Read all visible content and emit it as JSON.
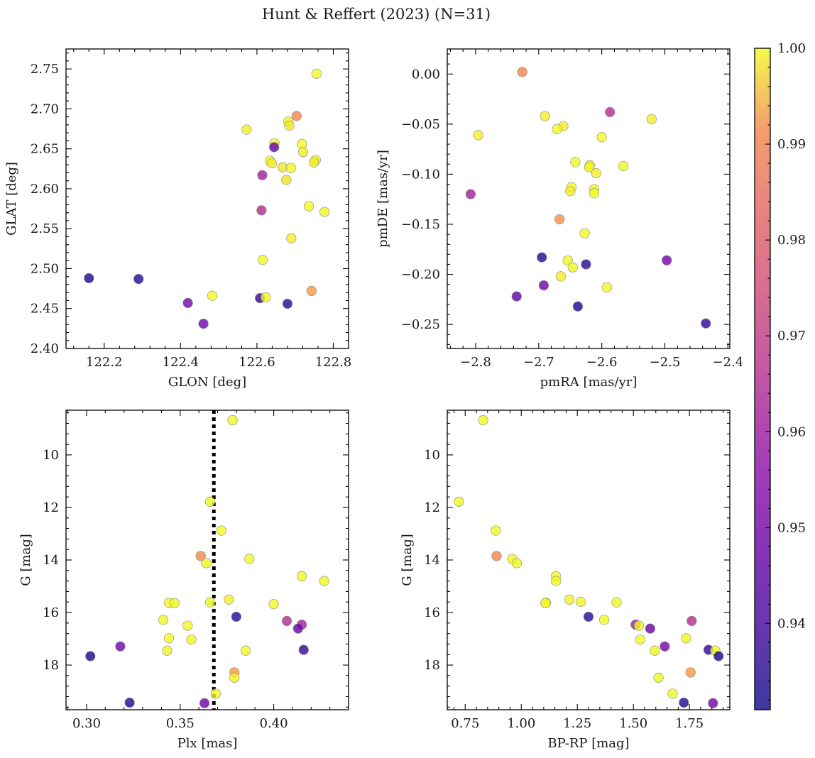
{
  "chart_data": {
    "type": "scatter",
    "title": "Hunt & Reffert (2023) (N=31)",
    "colorbar": {
      "range": [
        0.931,
        1.0
      ],
      "ticks": [
        0.94,
        0.95,
        0.96,
        0.97,
        0.98,
        0.99,
        1.0
      ],
      "tick_labels": [
        "0.94",
        "0.95",
        "0.96",
        "0.97",
        "0.98",
        "0.99",
        "1.00"
      ],
      "colormap": "plasma"
    },
    "panels": [
      {
        "id": "glon-glat",
        "xlabel": "GLON [deg]",
        "ylabel": "GLAT [deg]",
        "xlim": [
          122.1,
          122.84
        ],
        "ylim": [
          2.4,
          2.775
        ],
        "inverted_y": false,
        "xticks": [
          122.2,
          122.4,
          122.6,
          122.8
        ],
        "xtick_labels": [
          "122.2",
          "122.4",
          "122.6",
          "122.8"
        ],
        "yticks": [
          2.4,
          2.45,
          2.5,
          2.55,
          2.6,
          2.65,
          2.7,
          2.75
        ],
        "ytick_labels": [
          "2.40",
          "2.45",
          "2.50",
          "2.55",
          "2.60",
          "2.65",
          "2.70",
          "2.75"
        ],
        "points": [
          [
            122.756,
            2.744,
            1.0
          ],
          [
            122.704,
            2.691,
            0.985
          ],
          [
            122.682,
            2.684,
            1.0
          ],
          [
            122.685,
            2.679,
            0.998
          ],
          [
            122.573,
            2.674,
            0.999
          ],
          [
            122.646,
            2.657,
            0.999
          ],
          [
            122.718,
            2.656,
            1.0
          ],
          [
            122.645,
            2.652,
            0.945
          ],
          [
            122.721,
            2.646,
            0.999
          ],
          [
            122.754,
            2.636,
            1.0
          ],
          [
            122.634,
            2.635,
            1.0
          ],
          [
            122.749,
            2.633,
            0.999
          ],
          [
            122.639,
            2.632,
            0.999
          ],
          [
            122.667,
            2.627,
            0.998
          ],
          [
            122.689,
            2.626,
            1.0
          ],
          [
            122.614,
            2.617,
            0.958
          ],
          [
            122.677,
            2.611,
            0.998
          ],
          [
            122.736,
            2.578,
            1.0
          ],
          [
            122.777,
            2.571,
            1.0
          ],
          [
            122.612,
            2.573,
            0.962
          ],
          [
            122.69,
            2.538,
            0.999
          ],
          [
            122.615,
            2.511,
            1.0
          ],
          [
            122.16,
            2.488,
            0.932
          ],
          [
            122.29,
            2.487,
            0.933
          ],
          [
            122.483,
            2.466,
            1.0
          ],
          [
            122.608,
            2.463,
            0.936
          ],
          [
            122.743,
            2.472,
            0.989
          ],
          [
            122.419,
            2.457,
            0.948
          ],
          [
            122.68,
            2.456,
            0.935
          ],
          [
            122.46,
            2.431,
            0.947
          ],
          [
            122.623,
            2.464,
            1.0
          ]
        ]
      },
      {
        "id": "pmra-pmde",
        "xlabel": "pmRA [mas/yr]",
        "ylabel": "pmDE [mas/yr]",
        "xlim": [
          -2.845,
          -2.397
        ],
        "ylim": [
          -0.274,
          0.025
        ],
        "inverted_y": false,
        "xticks": [
          -2.8,
          -2.7,
          -2.6,
          -2.5,
          -2.4
        ],
        "xtick_labels": [
          "−2.8",
          "−2.7",
          "−2.6",
          "−2.5",
          "−2.4"
        ],
        "yticks": [
          -0.25,
          -0.2,
          -0.15,
          -0.1,
          -0.05,
          0.0
        ],
        "ytick_labels": [
          "−0.25",
          "−0.20",
          "−0.15",
          "−0.10",
          "−0.05",
          "0.00"
        ],
        "points": [
          [
            -2.726,
            0.002,
            0.985
          ],
          [
            -2.587,
            -0.038,
            0.962
          ],
          [
            -2.69,
            -0.042,
            0.999
          ],
          [
            -2.521,
            -0.045,
            0.999
          ],
          [
            -2.661,
            -0.052,
            0.999
          ],
          [
            -2.671,
            -0.055,
            1.0
          ],
          [
            -2.796,
            -0.061,
            0.999
          ],
          [
            -2.6,
            -0.063,
            1.0
          ],
          [
            -2.642,
            -0.088,
            1.0
          ],
          [
            -2.619,
            -0.091,
            0.998
          ],
          [
            -2.62,
            -0.093,
            1.0
          ],
          [
            -2.566,
            -0.092,
            1.0
          ],
          [
            -2.609,
            -0.099,
            0.999
          ],
          [
            -2.648,
            -0.113,
            1.0
          ],
          [
            -2.65,
            -0.117,
            0.999
          ],
          [
            -2.612,
            -0.115,
            1.0
          ],
          [
            -2.612,
            -0.119,
            1.0
          ],
          [
            -2.808,
            -0.12,
            0.958
          ],
          [
            -2.667,
            -0.145,
            0.987
          ],
          [
            -2.627,
            -0.159,
            1.0
          ],
          [
            -2.695,
            -0.183,
            0.933
          ],
          [
            -2.654,
            -0.186,
            1.0
          ],
          [
            -2.497,
            -0.186,
            0.948
          ],
          [
            -2.625,
            -0.19,
            0.935
          ],
          [
            -2.646,
            -0.193,
            1.0
          ],
          [
            -2.665,
            -0.202,
            0.999
          ],
          [
            -2.692,
            -0.211,
            0.947
          ],
          [
            -2.592,
            -0.213,
            1.0
          ],
          [
            -2.735,
            -0.222,
            0.943
          ],
          [
            -2.638,
            -0.232,
            0.933
          ],
          [
            -2.435,
            -0.249,
            0.936
          ]
        ]
      },
      {
        "id": "plx-g",
        "xlabel": "Plx [mas]",
        "ylabel": "G [mag]",
        "xlim": [
          0.289,
          0.44
        ],
        "ylim": [
          8.3,
          19.7
        ],
        "inverted_y": true,
        "vline": 0.368,
        "xticks": [
          0.3,
          0.35,
          0.4
        ],
        "xtick_labels": [
          "0.30",
          "0.35",
          "0.40"
        ],
        "yticks": [
          10,
          12,
          14,
          16,
          18
        ],
        "ytick_labels": [
          "10",
          "12",
          "14",
          "16",
          "18"
        ],
        "points": [
          [
            0.378,
            8.68,
            1.0
          ],
          [
            0.366,
            11.78,
            1.0
          ],
          [
            0.372,
            12.88,
            1.0
          ],
          [
            0.361,
            13.85,
            0.985
          ],
          [
            0.364,
            14.12,
            1.0
          ],
          [
            0.387,
            13.96,
            1.0
          ],
          [
            0.415,
            14.62,
            1.0
          ],
          [
            0.427,
            14.8,
            1.0
          ],
          [
            0.344,
            15.63,
            1.0
          ],
          [
            0.347,
            15.64,
            1.0
          ],
          [
            0.366,
            15.61,
            1.0
          ],
          [
            0.376,
            15.51,
            0.999
          ],
          [
            0.4,
            15.68,
            1.0
          ],
          [
            0.38,
            16.16,
            0.935
          ],
          [
            0.341,
            16.28,
            1.0
          ],
          [
            0.407,
            16.32,
            0.962
          ],
          [
            0.415,
            16.46,
            0.958
          ],
          [
            0.354,
            16.5,
            1.0
          ],
          [
            0.413,
            16.61,
            0.945
          ],
          [
            0.344,
            16.98,
            1.0
          ],
          [
            0.356,
            17.03,
            1.0
          ],
          [
            0.318,
            17.29,
            0.948
          ],
          [
            0.343,
            17.45,
            1.0
          ],
          [
            0.385,
            17.45,
            1.0
          ],
          [
            0.416,
            17.42,
            0.936
          ],
          [
            0.302,
            17.66,
            0.932
          ],
          [
            0.379,
            18.28,
            0.989
          ],
          [
            0.379,
            18.48,
            1.0
          ],
          [
            0.369,
            19.09,
            1.0
          ],
          [
            0.323,
            19.43,
            0.933
          ],
          [
            0.363,
            19.45,
            0.947
          ]
        ]
      },
      {
        "id": "bprp-g",
        "xlabel": "BP-RP [mag]",
        "ylabel": "G [mag]",
        "xlim": [
          0.67,
          1.93
        ],
        "ylim": [
          8.3,
          19.7
        ],
        "inverted_y": true,
        "xticks": [
          0.75,
          1.0,
          1.25,
          1.5,
          1.75
        ],
        "xtick_labels": [
          "0.75",
          "1.00",
          "1.25",
          "1.50",
          "1.75"
        ],
        "yticks": [
          10,
          12,
          14,
          16,
          18
        ],
        "ytick_labels": [
          "10",
          "12",
          "14",
          "16",
          "18"
        ],
        "points": [
          [
            0.83,
            8.68,
            1.0
          ],
          [
            0.722,
            11.78,
            1.0
          ],
          [
            0.886,
            12.88,
            1.0
          ],
          [
            0.89,
            13.85,
            0.985
          ],
          [
            0.96,
            13.96,
            1.0
          ],
          [
            0.98,
            14.12,
            1.0
          ],
          [
            1.155,
            14.62,
            1.0
          ],
          [
            1.155,
            14.8,
            1.0
          ],
          [
            1.11,
            15.63,
            1.0
          ],
          [
            1.108,
            15.64,
            1.0
          ],
          [
            1.215,
            15.51,
            0.999
          ],
          [
            1.265,
            15.59,
            1.0
          ],
          [
            1.425,
            15.61,
            1.0
          ],
          [
            1.3,
            16.16,
            0.935
          ],
          [
            1.37,
            16.28,
            1.0
          ],
          [
            1.76,
            16.32,
            0.962
          ],
          [
            1.51,
            16.46,
            0.958
          ],
          [
            1.525,
            16.5,
            1.0
          ],
          [
            1.575,
            16.61,
            0.945
          ],
          [
            1.735,
            16.98,
            1.0
          ],
          [
            1.53,
            17.03,
            1.0
          ],
          [
            1.64,
            17.29,
            0.948
          ],
          [
            1.595,
            17.45,
            1.0
          ],
          [
            1.835,
            17.42,
            0.936
          ],
          [
            1.865,
            17.45,
            1.0
          ],
          [
            1.88,
            17.66,
            0.932
          ],
          [
            1.755,
            18.28,
            0.989
          ],
          [
            1.612,
            18.48,
            1.0
          ],
          [
            1.675,
            19.09,
            1.0
          ],
          [
            1.725,
            19.43,
            0.933
          ],
          [
            1.855,
            19.45,
            0.947
          ]
        ]
      }
    ]
  }
}
